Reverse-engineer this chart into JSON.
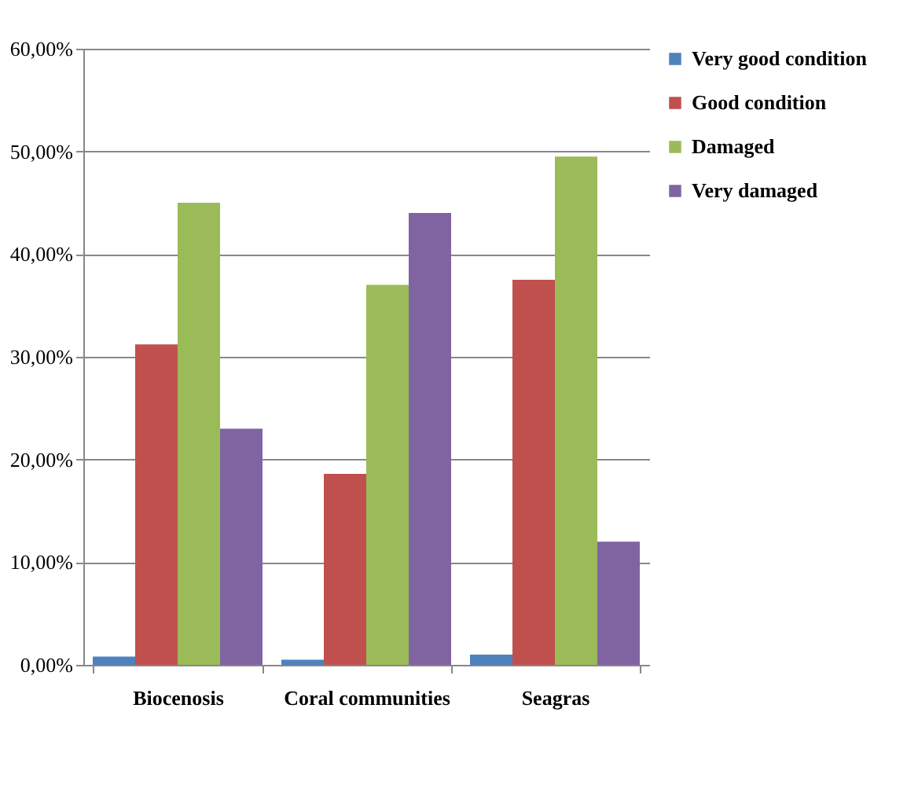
{
  "chart_data": {
    "type": "bar",
    "categories": [
      "Biocenosis",
      "Coral communities",
      "Seagras"
    ],
    "series": [
      {
        "name": "Very good condition",
        "color": "#4f81bd",
        "values": [
          0.8,
          0.5,
          1.0
        ]
      },
      {
        "name": "Good condition",
        "color": "#c0504d",
        "values": [
          31.2,
          18.6,
          37.5
        ]
      },
      {
        "name": "Damaged",
        "color": "#9bbb59",
        "values": [
          45.0,
          37.0,
          49.5
        ]
      },
      {
        "name": "Very damaged",
        "color": "#8064a2",
        "values": [
          23.0,
          44.0,
          12.0
        ]
      }
    ],
    "ylim": [
      0,
      60
    ],
    "yticks": [
      {
        "value": 0,
        "label": "0,00%"
      },
      {
        "value": 10,
        "label": "10,00%"
      },
      {
        "value": 20,
        "label": "20,00%"
      },
      {
        "value": 30,
        "label": "30,00%"
      },
      {
        "value": 40,
        "label": "40,00%"
      },
      {
        "value": 50,
        "label": "50,00%"
      },
      {
        "value": 60,
        "label": "60,00%"
      }
    ],
    "grid": "y",
    "legend": "right"
  }
}
